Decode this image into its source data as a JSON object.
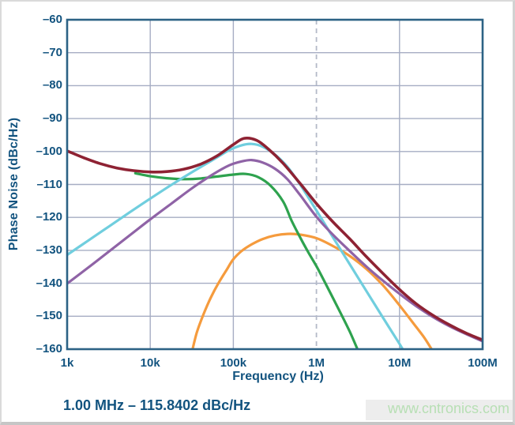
{
  "chart_data": {
    "type": "line",
    "title": "",
    "grid": true,
    "legend": "none",
    "axes": {
      "x": {
        "scale": "log",
        "min_log": 3,
        "max_log": 8,
        "title": "Frequency (Hz)",
        "ticks": [
          {
            "log": 3,
            "label": "1k"
          },
          {
            "log": 4,
            "label": "10k"
          },
          {
            "log": 5,
            "label": "100k"
          },
          {
            "log": 6,
            "label": "1M"
          },
          {
            "log": 7,
            "label": "10M"
          },
          {
            "log": 8,
            "label": "100M"
          }
        ],
        "gridlines_log": [
          4,
          5,
          7
        ]
      },
      "y": {
        "min": -160,
        "max": -60,
        "title": "Phase Noise (dBc/Hz)",
        "ticks": [
          {
            "value": -60,
            "label": "–60"
          },
          {
            "value": -70,
            "label": "–70"
          },
          {
            "value": -80,
            "label": "–80"
          },
          {
            "value": -90,
            "label": "–90"
          },
          {
            "value": -100,
            "label": "–100"
          },
          {
            "value": -110,
            "label": "–110"
          },
          {
            "value": -120,
            "label": "–120"
          },
          {
            "value": -130,
            "label": "–130"
          },
          {
            "value": -140,
            "label": "–140"
          },
          {
            "value": -150,
            "label": "–150"
          },
          {
            "value": -160,
            "label": "–160"
          }
        ],
        "gridline_values": [
          -70,
          -80,
          -90,
          -100,
          -110,
          -120,
          -130,
          -140,
          -150
        ]
      }
    },
    "marker_line": {
      "x_log": 6,
      "style": "dashed",
      "frequency_label": "1M"
    },
    "annotation": "1.00 MHz – 115.8402 dBc/Hz",
    "watermark": "www.cntronics.com",
    "series": [
      {
        "name": "orange-curve",
        "color": "#f59b3d",
        "width": 3.2,
        "points_log_db": [
          [
            4.5,
            -161
          ],
          [
            4.56,
            -155
          ],
          [
            4.64,
            -149.5
          ],
          [
            4.73,
            -144.3
          ],
          [
            4.82,
            -140.0
          ],
          [
            4.92,
            -135.9
          ],
          [
            5.0,
            -132.7
          ],
          [
            5.1,
            -130.2
          ],
          [
            5.22,
            -128.2
          ],
          [
            5.35,
            -126.6
          ],
          [
            5.5,
            -125.5
          ],
          [
            5.65,
            -125.0
          ],
          [
            5.8,
            -125.2
          ],
          [
            6.0,
            -126.3
          ],
          [
            6.2,
            -128.7
          ],
          [
            6.4,
            -131.7
          ],
          [
            6.6,
            -135.6
          ],
          [
            6.8,
            -140.6
          ],
          [
            7.0,
            -146.7
          ],
          [
            7.15,
            -151.6
          ],
          [
            7.3,
            -156.6
          ],
          [
            7.41,
            -161
          ]
        ]
      },
      {
        "name": "green-curve",
        "color": "#2ea24e",
        "width": 3.2,
        "points_log_db": [
          [
            3.82,
            -106.6
          ],
          [
            4.0,
            -107.5
          ],
          [
            4.2,
            -108.1
          ],
          [
            4.4,
            -108.4
          ],
          [
            4.6,
            -108.2
          ],
          [
            4.8,
            -107.6
          ],
          [
            5.0,
            -107.0
          ],
          [
            5.15,
            -106.8
          ],
          [
            5.3,
            -107.8
          ],
          [
            5.45,
            -110.4
          ],
          [
            5.6,
            -115.2
          ],
          [
            5.7,
            -120.9
          ],
          [
            5.8,
            -125.9
          ],
          [
            5.9,
            -130.5
          ],
          [
            6.0,
            -134.8
          ],
          [
            6.1,
            -139.6
          ],
          [
            6.25,
            -147.0
          ],
          [
            6.4,
            -154.6
          ],
          [
            6.51,
            -161
          ]
        ]
      },
      {
        "name": "cyan-curve",
        "color": "#70cede",
        "width": 3.2,
        "points_log_db": [
          [
            3.0,
            -131.4
          ],
          [
            3.25,
            -127.1
          ],
          [
            3.5,
            -122.8
          ],
          [
            3.75,
            -118.5
          ],
          [
            4.0,
            -114.3
          ],
          [
            4.25,
            -110.2
          ],
          [
            4.5,
            -106.3
          ],
          [
            4.75,
            -102.6
          ],
          [
            4.95,
            -99.6
          ],
          [
            5.1,
            -98.1
          ],
          [
            5.22,
            -97.7
          ],
          [
            5.35,
            -98.5
          ],
          [
            5.5,
            -100.9
          ],
          [
            5.65,
            -104.6
          ],
          [
            5.8,
            -109.9
          ],
          [
            6.0,
            -117.9
          ],
          [
            6.2,
            -126.1
          ],
          [
            6.4,
            -134.2
          ],
          [
            6.6,
            -142.3
          ],
          [
            6.8,
            -150.4
          ],
          [
            7.0,
            -158.4
          ],
          [
            7.06,
            -161
          ]
        ]
      },
      {
        "name": "purple-curve",
        "color": "#8f63a6",
        "width": 3.2,
        "points_log_db": [
          [
            3.0,
            -140.1
          ],
          [
            3.25,
            -135.3
          ],
          [
            3.5,
            -130.4
          ],
          [
            3.75,
            -125.5
          ],
          [
            4.0,
            -120.6
          ],
          [
            4.25,
            -115.9
          ],
          [
            4.5,
            -111.2
          ],
          [
            4.75,
            -107.0
          ],
          [
            4.95,
            -104.2
          ],
          [
            5.1,
            -103.0
          ],
          [
            5.22,
            -102.6
          ],
          [
            5.35,
            -103.3
          ],
          [
            5.5,
            -105.2
          ],
          [
            5.65,
            -108.4
          ],
          [
            5.8,
            -113.1
          ],
          [
            6.0,
            -119.8
          ],
          [
            6.2,
            -125.3
          ],
          [
            6.4,
            -130.2
          ],
          [
            6.6,
            -134.9
          ],
          [
            6.8,
            -139.2
          ],
          [
            7.0,
            -143.2
          ],
          [
            7.2,
            -146.9
          ],
          [
            7.4,
            -150.2
          ],
          [
            7.6,
            -153.0
          ],
          [
            7.8,
            -155.4
          ],
          [
            8.0,
            -157.6
          ]
        ]
      },
      {
        "name": "dark-red-curve",
        "color": "#8e2233",
        "width": 3.6,
        "points_log_db": [
          [
            3.0,
            -99.8
          ],
          [
            3.2,
            -101.9
          ],
          [
            3.4,
            -103.7
          ],
          [
            3.6,
            -105.0
          ],
          [
            3.8,
            -105.8
          ],
          [
            4.0,
            -106.2
          ],
          [
            4.2,
            -106.1
          ],
          [
            4.4,
            -105.4
          ],
          [
            4.6,
            -103.9
          ],
          [
            4.8,
            -101.4
          ],
          [
            5.0,
            -97.9
          ],
          [
            5.13,
            -96.0
          ],
          [
            5.28,
            -96.6
          ],
          [
            5.42,
            -99.2
          ],
          [
            5.6,
            -103.6
          ],
          [
            5.8,
            -109.6
          ],
          [
            6.0,
            -115.8
          ],
          [
            6.2,
            -121.4
          ],
          [
            6.4,
            -126.5
          ],
          [
            6.6,
            -131.9
          ],
          [
            6.8,
            -137.0
          ],
          [
            7.0,
            -141.9
          ],
          [
            7.2,
            -146.2
          ],
          [
            7.4,
            -149.7
          ],
          [
            7.6,
            -152.6
          ],
          [
            7.8,
            -155.1
          ],
          [
            8.0,
            -157.2
          ]
        ]
      }
    ],
    "style": {
      "text_color": "#12537f",
      "frame_color": "#2c6285",
      "grid_color": "#a6adc3",
      "dashed_color": "#b4bac8",
      "background": "#ffffff",
      "watermark_color": "#b7dfb4",
      "watermark_strip": "#ededed"
    }
  }
}
